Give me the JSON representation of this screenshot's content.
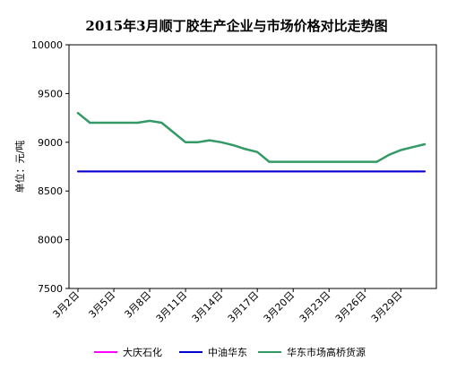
{
  "chart_data": {
    "type": "line",
    "title": "2015年3月顺丁胶生产企业与市场价格对比走势图",
    "ylabel": "单位：元/吨",
    "xlabel": "",
    "ylim": [
      7500,
      10000
    ],
    "yticks": [
      "7500",
      "8000",
      "8500",
      "9000",
      "9500",
      "10000"
    ],
    "grid": false,
    "legend_position": "bottom",
    "x": [
      "3月2日",
      "3月3日",
      "3月4日",
      "3月5日",
      "3月6日",
      "3月7日",
      "3月8日",
      "3月9日",
      "3月10日",
      "3月11日",
      "3月12日",
      "3月13日",
      "3月14日",
      "3月15日",
      "3月16日",
      "3月17日",
      "3月18日",
      "3月19日",
      "3月20日",
      "3月21日",
      "3月22日",
      "3月23日",
      "3月24日",
      "3月25日",
      "3月26日",
      "3月27日",
      "3月28日",
      "3月29日",
      "3月30日",
      "3月31日"
    ],
    "x_tick_labels": [
      "3月2日",
      "3月5日",
      "3月8日",
      "3月11日",
      "3月14日",
      "3月17日",
      "3月20日",
      "3月23日",
      "3月26日",
      "3月29日"
    ],
    "series": [
      {
        "name": "大庆石化",
        "color": "#ff00ff",
        "values": [
          8700,
          8700,
          8700,
          8700,
          8700,
          8700,
          8700,
          8700,
          8700,
          8700,
          8700,
          8700,
          8700,
          8700,
          8700,
          8700,
          8700,
          8700,
          8700,
          8700,
          8700,
          8700,
          8700,
          8700,
          8700,
          8700,
          8700,
          8700,
          8700,
          8700
        ]
      },
      {
        "name": "中油华东",
        "color": "#0000cc",
        "values": [
          8700,
          8700,
          8700,
          8700,
          8700,
          8700,
          8700,
          8700,
          8700,
          8700,
          8700,
          8700,
          8700,
          8700,
          8700,
          8700,
          8700,
          8700,
          8700,
          8700,
          8700,
          8700,
          8700,
          8700,
          8700,
          8700,
          8700,
          8700,
          8700,
          8700
        ]
      },
      {
        "name": "华东市场高桥货源",
        "color": "#339966",
        "values": [
          9300,
          9200,
          9200,
          9200,
          9200,
          9200,
          9220,
          9200,
          9100,
          9000,
          9000,
          9020,
          9000,
          8970,
          8930,
          8900,
          8800,
          8800,
          8800,
          8800,
          8800,
          8800,
          8800,
          8800,
          8800,
          8800,
          8870,
          8920,
          8950,
          8980
        ]
      }
    ]
  }
}
